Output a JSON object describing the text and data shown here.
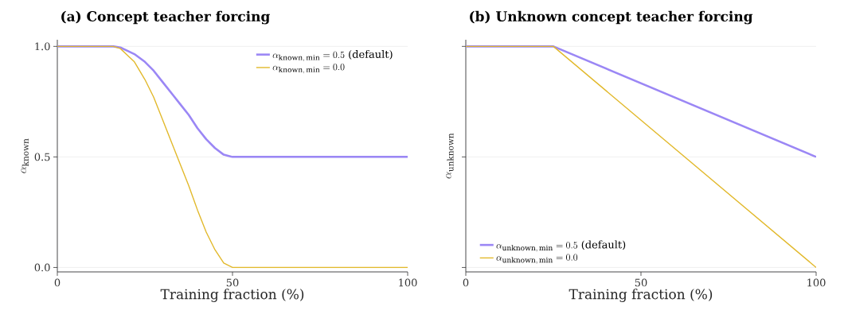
{
  "chart_data": [
    {
      "type": "line",
      "title": "(a) Concept teacher forcing",
      "xlabel": "Training fraction (%)",
      "ylabel": "\\alpha_{\\mathrm{known}}",
      "xlim": [
        0,
        100
      ],
      "ylim": [
        -0.02,
        1.03
      ],
      "xticks": [
        0,
        50,
        100
      ],
      "yticks": [
        {
          "value": 0,
          "label": "0.0"
        },
        {
          "value": 0.5,
          "label": "0.5"
        },
        {
          "value": 1,
          "label": "1.0"
        }
      ],
      "grid": "y",
      "legend": "top right",
      "x": [
        0,
        16,
        18,
        20,
        22,
        25,
        27.5,
        30,
        33,
        35,
        37.5,
        40,
        42.5,
        45,
        47.5,
        50,
        100
      ],
      "series": [
        {
          "name": "\\alpha_{\\mathrm{known,\\,min}}=0.5\\mbox{ (default)}",
          "color": "#9b87f5",
          "values": [
            1,
            1,
            0.995,
            0.98,
            0.965,
            0.93,
            0.89,
            0.84,
            0.78,
            0.74,
            0.69,
            0.63,
            0.58,
            0.54,
            0.51,
            0.5,
            0.5
          ]
        },
        {
          "name": "\\alpha_{\\mathrm{known,\\,min}}=0.0",
          "color": "#e2b92c",
          "values": [
            1,
            1,
            0.99,
            0.96,
            0.93,
            0.85,
            0.77,
            0.67,
            0.55,
            0.47,
            0.37,
            0.26,
            0.16,
            0.08,
            0.02,
            0,
            0
          ]
        }
      ]
    },
    {
      "type": "line",
      "title": "(b) Unknown concept teacher forcing",
      "xlabel": "Training fraction (%)",
      "ylabel": "\\alpha_{\\mathrm{unknown}}",
      "xlim": [
        0,
        100
      ],
      "ylim": [
        -0.02,
        1.03
      ],
      "xticks": [
        0,
        50,
        100
      ],
      "yticks": [
        {
          "value": 0,
          "label": null
        },
        {
          "value": 0.5,
          "label": null
        },
        {
          "value": 1,
          "label": null
        }
      ],
      "grid": "y",
      "legend": "bottom left",
      "tick_labels": "x",
      "x": [
        0,
        25,
        100
      ],
      "series": [
        {
          "name": "\\alpha_{\\mathrm{unknown,\\,min}}=0.5\\mbox{ (default)}",
          "color": "#9b87f5",
          "values": [
            1,
            1,
            0.5
          ]
        },
        {
          "name": "\\alpha_{\\mathrm{unknown,\\,min}}=0.0",
          "color": "#e2b92c",
          "values": [
            1,
            1,
            0
          ]
        }
      ]
    }
  ]
}
